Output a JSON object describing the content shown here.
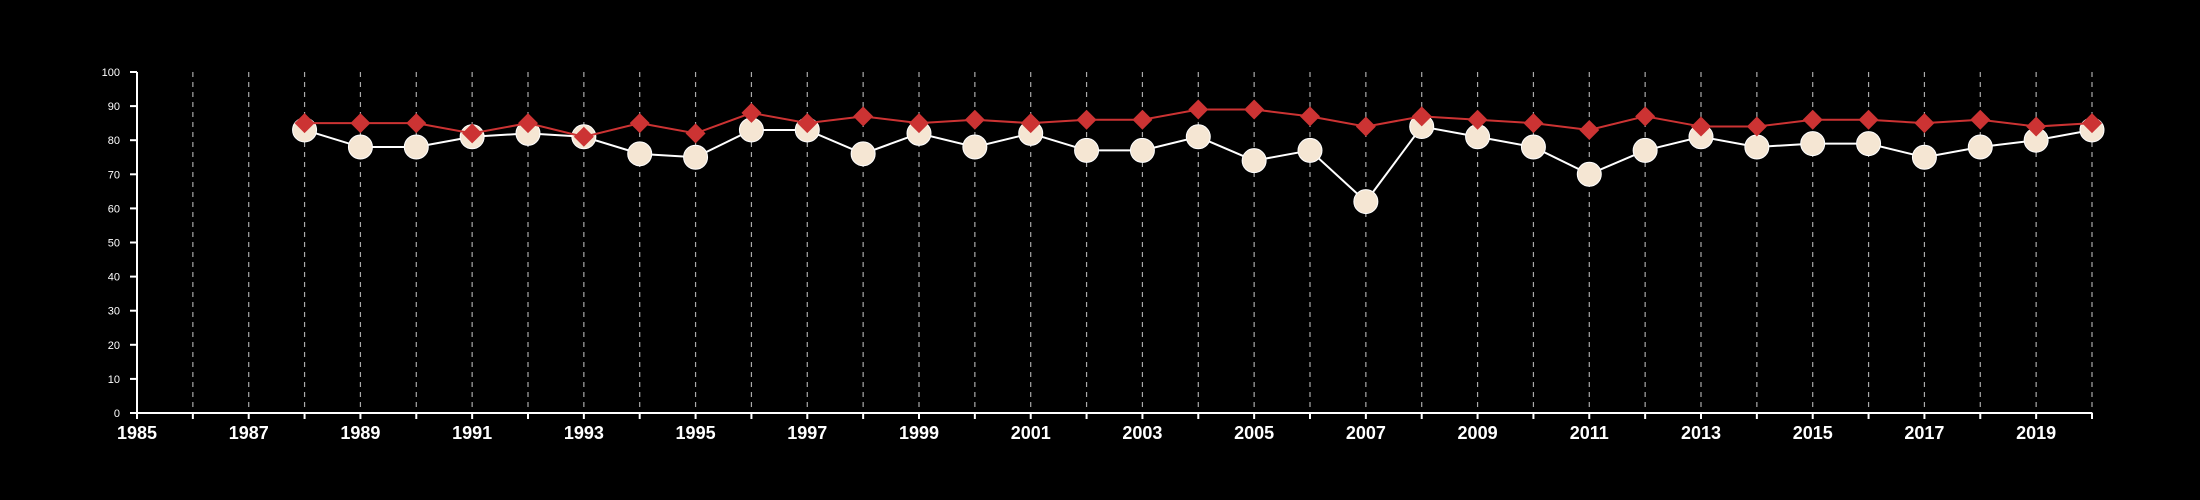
{
  "chart_data": {
    "type": "line",
    "title": "",
    "xlabel": "",
    "ylabel": "",
    "xlim": [
      1985,
      2020
    ],
    "ylim": [
      0,
      100
    ],
    "x_ticks": [
      "1985",
      "1987",
      "1989",
      "1991",
      "1993",
      "1995",
      "1997",
      "1999",
      "2001",
      "2003",
      "2005",
      "2007",
      "2009",
      "2011",
      "2013",
      "2015",
      "2017",
      "2019"
    ],
    "y_ticks": [
      "0",
      "10",
      "20",
      "30",
      "40",
      "50",
      "60",
      "70",
      "80",
      "90",
      "100"
    ],
    "grid": "vertical dashed at every year",
    "legend": "none",
    "x": [
      1988,
      1989,
      1990,
      1991,
      1992,
      1993,
      1994,
      1995,
      1996,
      1997,
      1998,
      1999,
      2000,
      2001,
      2002,
      2003,
      2004,
      2005,
      2006,
      2007,
      2008,
      2009,
      2010,
      2011,
      2012,
      2013,
      2014,
      2015,
      2016,
      2017,
      2018,
      2019,
      2020
    ],
    "series": [
      {
        "marker": "diamond",
        "color": "#cc3333",
        "values": [
          85,
          85,
          85,
          82,
          85,
          81,
          85,
          82,
          88,
          85,
          87,
          85,
          86,
          85,
          86,
          86,
          89,
          89,
          87,
          84,
          87,
          86,
          85,
          83,
          87,
          84,
          84,
          86,
          86,
          85,
          86,
          84,
          85
        ]
      },
      {
        "marker": "circle",
        "color": "#f5e6d3",
        "values": [
          83,
          78,
          78,
          81,
          82,
          81,
          76,
          75,
          83,
          83,
          76,
          82,
          78,
          82,
          77,
          77,
          81,
          74,
          77,
          62,
          84,
          81,
          78,
          70,
          77,
          81,
          78,
          79,
          79,
          75,
          78,
          80,
          83
        ]
      }
    ]
  }
}
